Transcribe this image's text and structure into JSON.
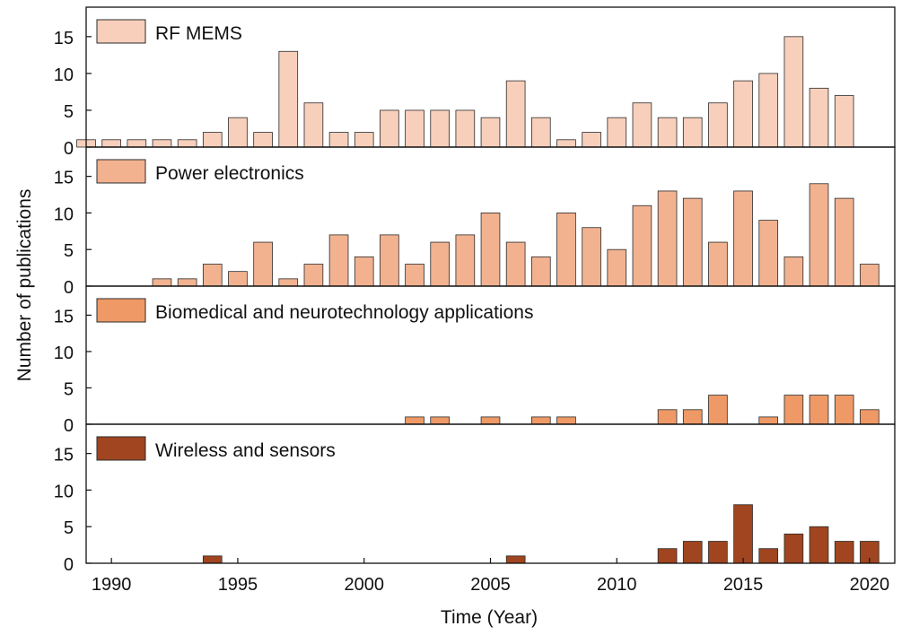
{
  "chart_data": {
    "type": "bar",
    "xlabel": "Time (Year)",
    "ylabel": "Number of publications",
    "xlim": [
      1989,
      2021
    ],
    "ylim": [
      0,
      19
    ],
    "x_ticks": [
      1990,
      1995,
      2000,
      2005,
      2010,
      2015,
      2020
    ],
    "y_ticks": [
      0,
      5,
      10,
      15
    ],
    "grid": false,
    "legend_placement": "top-left",
    "categories": [
      1989,
      1990,
      1991,
      1992,
      1993,
      1994,
      1995,
      1996,
      1997,
      1998,
      1999,
      2000,
      2001,
      2002,
      2003,
      2004,
      2005,
      2006,
      2007,
      2008,
      2009,
      2010,
      2011,
      2012,
      2013,
      2014,
      2015,
      2016,
      2017,
      2018,
      2019,
      2020
    ],
    "series": [
      {
        "name": "RF MEMS",
        "color": "#f7cfbb",
        "values": [
          1,
          1,
          1,
          1,
          1,
          2,
          4,
          2,
          13,
          6,
          2,
          2,
          5,
          5,
          5,
          5,
          4,
          9,
          4,
          1,
          2,
          4,
          6,
          4,
          4,
          6,
          9,
          10,
          15,
          8,
          7,
          0
        ]
      },
      {
        "name": "Power electronics",
        "color": "#f2b290",
        "values": [
          0,
          0,
          0,
          1,
          1,
          3,
          2,
          6,
          1,
          3,
          7,
          4,
          7,
          3,
          6,
          7,
          10,
          6,
          4,
          10,
          8,
          5,
          11,
          13,
          12,
          6,
          13,
          9,
          4,
          14,
          12,
          3
        ]
      },
      {
        "name": "Biomedical and neurotechnology applications",
        "color": "#ee9966",
        "values": [
          0,
          0,
          0,
          0,
          0,
          0,
          0,
          0,
          0,
          0,
          0,
          0,
          0,
          1,
          1,
          0,
          1,
          0,
          1,
          1,
          0,
          0,
          0,
          2,
          2,
          4,
          0,
          1,
          4,
          4,
          4,
          2
        ]
      },
      {
        "name": "Wireless and sensors",
        "color": "#a0451f",
        "values": [
          0,
          0,
          0,
          0,
          0,
          1,
          0,
          0,
          0,
          0,
          0,
          0,
          0,
          0,
          0,
          0,
          0,
          1,
          0,
          0,
          0,
          0,
          0,
          2,
          3,
          3,
          8,
          2,
          4,
          5,
          3,
          3
        ]
      }
    ]
  }
}
